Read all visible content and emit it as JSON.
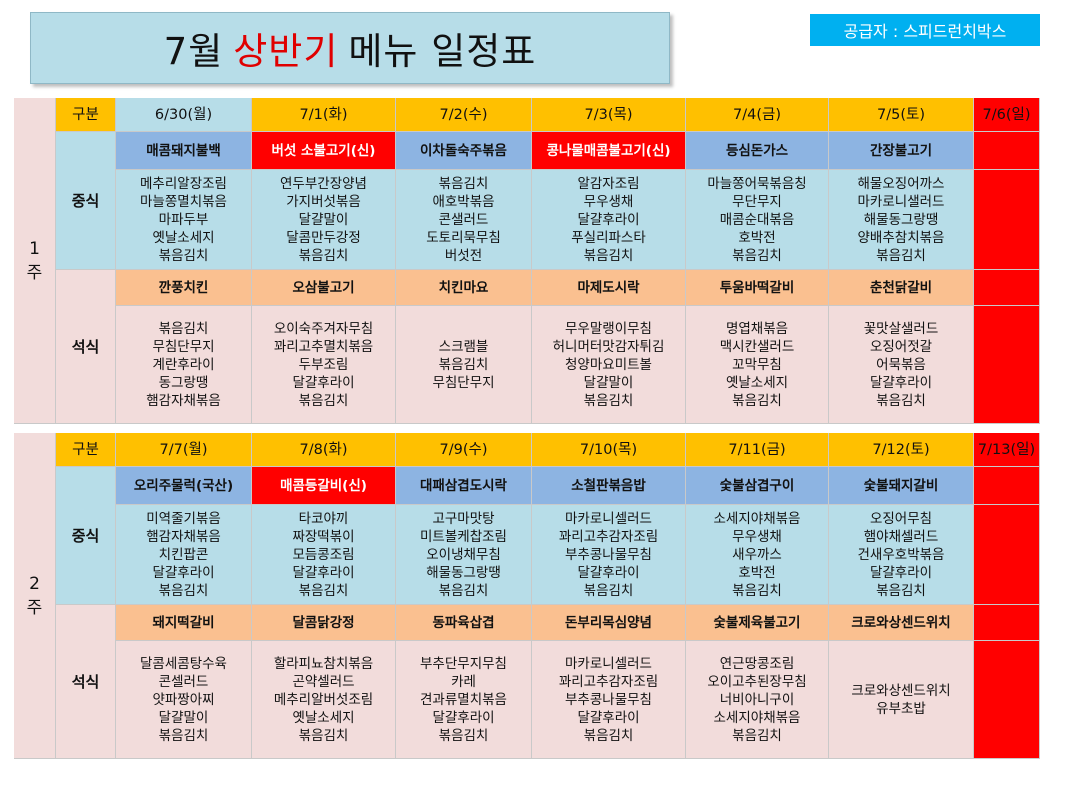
{
  "title": {
    "prefix": "7월",
    "highlight": "상반기",
    "suffix": "메뉴 일정표"
  },
  "supplier": "공급자 : 스피드런치박스",
  "gubun_label": "구분",
  "lunch_label": "중식",
  "dinner_label": "석식",
  "weeks": [
    {
      "label": [
        "1",
        "주"
      ],
      "dates": [
        "6/30(월)",
        "7/1(화)",
        "7/2(수)",
        "7/3(목)",
        "7/4(금)",
        "7/5(토)",
        "7/6(일)"
      ],
      "lunch_main": [
        "매콤돼지불백",
        "버섯 소불고기(신)",
        "이차돌숙주볶음",
        "콩나물매콤불고기(신)",
        "등심돈가스",
        "간장불고기"
      ],
      "lunch_special": [
        false,
        true,
        false,
        true,
        false,
        false
      ],
      "lunch_sides": [
        [
          "메추리알장조림",
          "마늘쫑멸치볶음",
          "마파두부",
          "옛날소세지",
          "볶음김치"
        ],
        [
          "연두부간장양념",
          "가지버섯볶음",
          "달걀말이",
          "달콤만두강정",
          "볶음김치"
        ],
        [
          "볶음김치",
          "애호박볶음",
          "콘샐러드",
          "도토리묵무침",
          "버섯전"
        ],
        [
          "알감자조림",
          "무우생채",
          "달걀후라이",
          "푸실리파스타",
          "볶음김치"
        ],
        [
          "마늘쫑어묵볶음칭",
          "무단무지",
          "매콤순대볶음",
          "호박전",
          "볶음김치"
        ],
        [
          "해물오징어까스",
          "마카로니샐러드",
          "해물동그랑땡",
          "양배추참치볶음",
          "볶음김치"
        ]
      ],
      "dinner_main": [
        "깐풍치킨",
        "오삼불고기",
        "치킨마요",
        "마제도시락",
        "투움바떡갈비",
        "춘천닭갈비"
      ],
      "dinner_sides": [
        [
          "볶음김치",
          "무침단무지",
          "계란후라이",
          "동그랑땡",
          "햄감자채볶음"
        ],
        [
          "오이숙주겨자무침",
          "꽈리고추멸치볶음",
          "두부조림",
          "달걀후라이",
          "볶음김치"
        ],
        [
          "스크램블",
          "볶음김치",
          "무침단무지"
        ],
        [
          "무우말랭이무침",
          "허니머터맛감자튀김",
          "청양마요미트볼",
          "달걀말이",
          "볶음김치"
        ],
        [
          "명엽채볶음",
          "맥시칸샐러드",
          "꼬막무침",
          "옛날소세지",
          "볶음김치"
        ],
        [
          "꽃맛살샐러드",
          "오징어젓갈",
          "어묵볶음",
          "달걀후라이",
          "볶음김치"
        ]
      ]
    },
    {
      "label": [
        "2",
        "주"
      ],
      "dates": [
        "7/7(월)",
        "7/8(화)",
        "7/9(수)",
        "7/10(목)",
        "7/11(금)",
        "7/12(토)",
        "7/13(일)"
      ],
      "lunch_main": [
        "오리주물럭(국산)",
        "매콤등갈비(신)",
        "대패삼겹도시락",
        "소철판볶음밥",
        "숯불삼겹구이",
        "숯불돼지갈비"
      ],
      "lunch_special": [
        false,
        true,
        false,
        false,
        false,
        false
      ],
      "lunch_sides": [
        [
          "미역줄기볶음",
          "햄감자채볶음",
          "치킨팝콘",
          "달걀후라이",
          "볶음김치"
        ],
        [
          "타코야끼",
          "짜장떡볶이",
          "모듬콩조림",
          "달걀후라이",
          "볶음김치"
        ],
        [
          "고구마맛탕",
          "미트볼케찹조림",
          "오이냉채무침",
          "해물동그랑땡",
          "볶음김치"
        ],
        [
          "마카로니셀러드",
          "꽈리고추감자조림",
          "부추콩나물무침",
          "달걀후라이",
          "볶음김치"
        ],
        [
          "소세지야채볶음",
          "무우생채",
          "새우까스",
          "호박전",
          "볶음김치"
        ],
        [
          "오징어무침",
          "햄야채셀러드",
          "건새우호박볶음",
          "달걀후라이",
          "볶음김치"
        ]
      ],
      "dinner_main": [
        "돼지떡갈비",
        "달콤닭강정",
        "동파육삽겹",
        "돈부리목심양념",
        "숯불제육불고기",
        "크로와상센드위치"
      ],
      "dinner_sides": [
        [
          "달콤세콤탕수육",
          "콘셀러드",
          "얏파짱아찌",
          "달걀말이",
          "볶음김치"
        ],
        [
          "할라피뇨참치볶음",
          "곤약셀러드",
          "메추리알버섯조림",
          "옛날소세지",
          "볶음김치"
        ],
        [
          "부추단무지무침",
          "카레",
          "견과류멸치볶음",
          "달걀후라이",
          "볶음김치"
        ],
        [
          "마카로니셀러드",
          "꽈리고추감자조림",
          "부추콩나물무침",
          "달걀후라이",
          "볶음김치"
        ],
        [
          "연근땅콩조림",
          "오이고추된장무침",
          "너비아니구이",
          "소세지야채볶음",
          "볶음김치"
        ],
        [
          "크로와상센드위치",
          "유부초밥"
        ]
      ]
    }
  ]
}
